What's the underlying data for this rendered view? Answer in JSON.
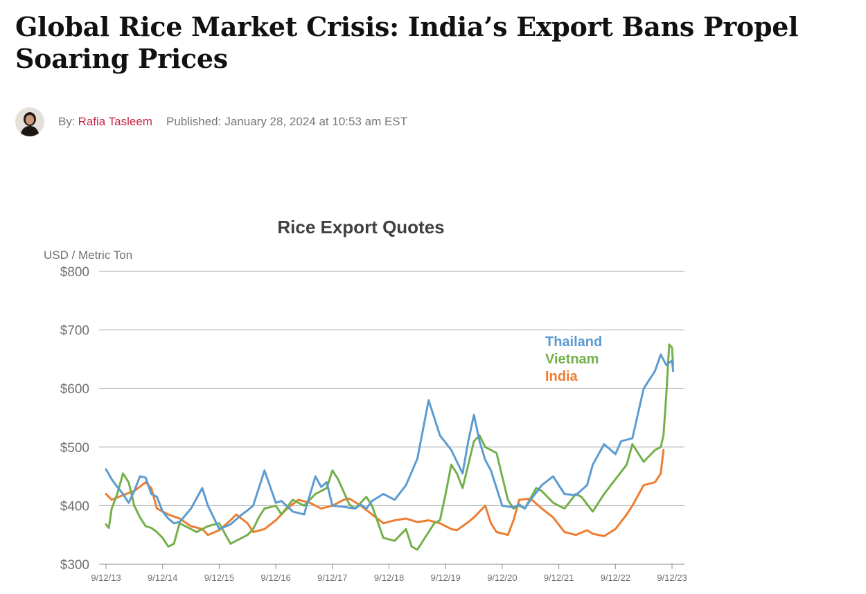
{
  "article": {
    "headline": "Global Rice Market Crisis: India’s Export Bans Propel Soaring Prices",
    "byline_prefix": "By:",
    "author": "Rafia Tasleem",
    "published_prefix": "Published:",
    "published_date": "January 28, 2024 at 10:53 am EST"
  },
  "colors": {
    "author": "#c8294a",
    "thailand": "#5b9bd1",
    "vietnam": "#74b04a",
    "india": "#ed7d31"
  },
  "chart_data": {
    "type": "line",
    "title": "Rice Export Quotes",
    "ylabel": "USD / Metric Ton",
    "xlabel": "",
    "ylim": [
      300,
      800
    ],
    "yticks": [
      800,
      700,
      600,
      500,
      400,
      300
    ],
    "ytick_labels": [
      "$800",
      "$700",
      "$600",
      "$500",
      "$400",
      "$300"
    ],
    "xticks": [
      "9/12/13",
      "9/12/14",
      "9/12/15",
      "9/12/16",
      "9/12/17",
      "9/12/18",
      "9/12/19",
      "9/12/20",
      "9/12/21",
      "9/12/22",
      "9/12/23"
    ],
    "grid": "horizontal",
    "legend_position": "top-right",
    "x_unit": "years",
    "series": [
      {
        "name": "Thailand",
        "color": "#5b9bd1",
        "x": [
          2013.7,
          2013.8,
          2013.9,
          2014.0,
          2014.1,
          2014.2,
          2014.3,
          2014.4,
          2014.5,
          2014.6,
          2014.7,
          2014.8,
          2014.9,
          2015.0,
          2015.2,
          2015.4,
          2015.5,
          2015.7,
          2015.9,
          2016.1,
          2016.2,
          2016.3,
          2016.5,
          2016.7,
          2016.8,
          2017.0,
          2017.2,
          2017.4,
          2017.5,
          2017.6,
          2017.7,
          2017.9,
          2018.1,
          2018.2,
          2018.3,
          2018.4,
          2018.6,
          2018.8,
          2019.0,
          2019.2,
          2019.4,
          2019.6,
          2019.8,
          2020.0,
          2020.1,
          2020.2,
          2020.3,
          2020.4,
          2020.5,
          2020.7,
          2020.9,
          2021.0,
          2021.1,
          2021.2,
          2021.4,
          2021.6,
          2021.8,
          2022.0,
          2022.2,
          2022.3,
          2022.5,
          2022.7,
          2022.8,
          2023.0,
          2023.2,
          2023.4,
          2023.5,
          2023.6,
          2023.7,
          2023.72
        ],
        "values": [
          462,
          445,
          432,
          420,
          405,
          425,
          450,
          448,
          420,
          415,
          390,
          378,
          370,
          372,
          395,
          430,
          400,
          360,
          368,
          385,
          392,
          400,
          460,
          405,
          408,
          390,
          385,
          450,
          432,
          440,
          400,
          398,
          395,
          402,
          395,
          408,
          420,
          410,
          435,
          480,
          580,
          520,
          495,
          455,
          510,
          555,
          510,
          478,
          460,
          400,
          397,
          402,
          395,
          410,
          435,
          450,
          420,
          418,
          435,
          470,
          505,
          488,
          510,
          515,
          600,
          630,
          658,
          640,
          648,
          630
        ]
      },
      {
        "name": "Vietnam",
        "color": "#74b04a",
        "x": [
          2013.7,
          2013.75,
          2013.8,
          2013.9,
          2014.0,
          2014.1,
          2014.2,
          2014.3,
          2014.4,
          2014.5,
          2014.6,
          2014.7,
          2014.8,
          2014.9,
          2015.0,
          2015.2,
          2015.3,
          2015.5,
          2015.7,
          2015.9,
          2016.0,
          2016.2,
          2016.3,
          2016.4,
          2016.5,
          2016.7,
          2016.8,
          2017.0,
          2017.2,
          2017.4,
          2017.6,
          2017.7,
          2017.8,
          2018.0,
          2018.1,
          2018.2,
          2018.3,
          2018.4,
          2018.6,
          2018.8,
          2019.0,
          2019.1,
          2019.2,
          2019.4,
          2019.5,
          2019.6,
          2019.7,
          2019.8,
          2019.9,
          2020.0,
          2020.1,
          2020.2,
          2020.3,
          2020.4,
          2020.6,
          2020.8,
          2020.9,
          2021.0,
          2021.1,
          2021.3,
          2021.4,
          2021.6,
          2021.8,
          2022.0,
          2022.1,
          2022.3,
          2022.5,
          2022.7,
          2022.9,
          2023.0,
          2023.2,
          2023.4,
          2023.5,
          2023.55,
          2023.6,
          2023.65,
          2023.7,
          2023.72
        ],
        "values": [
          368,
          362,
          395,
          420,
          455,
          440,
          400,
          380,
          365,
          362,
          355,
          345,
          330,
          335,
          370,
          360,
          355,
          365,
          370,
          335,
          340,
          350,
          360,
          380,
          395,
          400,
          385,
          410,
          400,
          420,
          430,
          460,
          445,
          402,
          395,
          405,
          415,
          400,
          345,
          340,
          360,
          330,
          325,
          355,
          370,
          375,
          420,
          470,
          455,
          430,
          470,
          510,
          520,
          500,
          490,
          410,
          395,
          400,
          395,
          430,
          425,
          405,
          395,
          420,
          415,
          390,
          420,
          445,
          470,
          505,
          475,
          495,
          500,
          520,
          590,
          675,
          670,
          640
        ]
      },
      {
        "name": "India",
        "color": "#ed7d31",
        "x": [
          2013.7,
          2013.8,
          2014.0,
          2014.2,
          2014.4,
          2014.5,
          2014.6,
          2014.8,
          2015.0,
          2015.2,
          2015.4,
          2015.5,
          2015.7,
          2015.9,
          2016.0,
          2016.2,
          2016.3,
          2016.5,
          2016.7,
          2016.9,
          2017.1,
          2017.3,
          2017.5,
          2017.7,
          2017.9,
          2018.0,
          2018.2,
          2018.4,
          2018.6,
          2018.8,
          2019.0,
          2019.2,
          2019.4,
          2019.6,
          2019.8,
          2019.9,
          2020.0,
          2020.1,
          2020.2,
          2020.4,
          2020.5,
          2020.6,
          2020.8,
          2020.9,
          2021.0,
          2021.2,
          2021.4,
          2021.6,
          2021.8,
          2022.0,
          2022.2,
          2022.3,
          2022.5,
          2022.7,
          2022.9,
          2023.0,
          2023.2,
          2023.4,
          2023.5,
          2023.55
        ],
        "values": [
          420,
          410,
          418,
          425,
          440,
          430,
          395,
          385,
          378,
          365,
          360,
          350,
          358,
          375,
          385,
          370,
          355,
          360,
          375,
          395,
          410,
          405,
          395,
          400,
          410,
          412,
          400,
          385,
          370,
          375,
          378,
          372,
          375,
          370,
          360,
          358,
          365,
          372,
          380,
          400,
          370,
          355,
          350,
          375,
          410,
          412,
          395,
          380,
          355,
          350,
          358,
          352,
          348,
          360,
          385,
          400,
          435,
          440,
          455,
          495
        ]
      }
    ]
  }
}
